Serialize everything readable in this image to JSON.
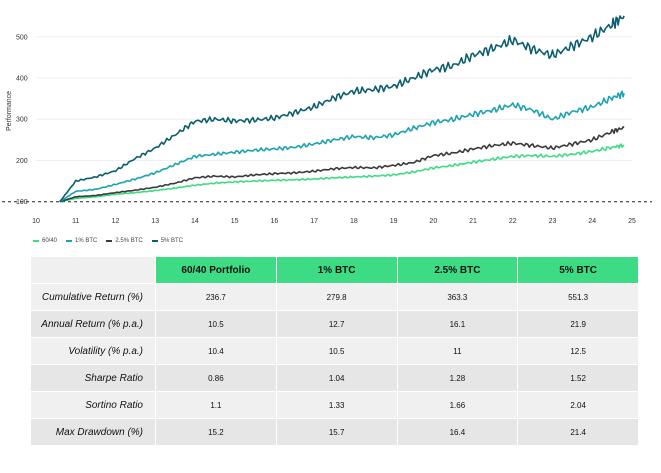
{
  "chart_data": {
    "type": "line",
    "xlabel": "",
    "ylabel": "Performance",
    "x_ticks": [
      "10",
      "11",
      "12",
      "13",
      "14",
      "15",
      "16",
      "17",
      "18",
      "19",
      "20",
      "21",
      "22",
      "23",
      "24",
      "25"
    ],
    "y_ticks": [
      "100",
      "200",
      "300",
      "400",
      "500"
    ],
    "xlim": [
      10,
      25
    ],
    "ylim": [
      75,
      565
    ],
    "baseline": 100,
    "x": [
      10.6,
      11.0,
      11.5,
      12.0,
      12.5,
      13.0,
      13.5,
      14.0,
      14.5,
      15.0,
      15.5,
      16.0,
      16.5,
      17.0,
      17.5,
      18.0,
      18.5,
      19.0,
      19.5,
      20.0,
      20.5,
      21.0,
      21.5,
      22.0,
      22.5,
      23.0,
      23.5,
      24.0,
      24.5,
      24.8
    ],
    "series": [
      {
        "name": "60/40",
        "color": "#3ddc84",
        "values": [
          100,
          108,
          112,
          118,
          122,
          127,
          133,
          140,
          145,
          148,
          150,
          152,
          153,
          155,
          158,
          160,
          162,
          165,
          172,
          182,
          188,
          196,
          203,
          210,
          212,
          210,
          215,
          222,
          232,
          237
        ]
      },
      {
        "name": "1% BTC",
        "color": "#3a3a3a",
        "values": [
          100,
          112,
          115,
          122,
          128,
          135,
          145,
          158,
          162,
          160,
          165,
          168,
          170,
          174,
          180,
          183,
          182,
          188,
          195,
          212,
          218,
          228,
          236,
          242,
          236,
          230,
          240,
          250,
          270,
          280
        ]
      },
      {
        "name": "2.5% BTC",
        "color": "#1aa3b0",
        "values": [
          100,
          125,
          130,
          142,
          155,
          170,
          190,
          210,
          215,
          220,
          225,
          228,
          232,
          240,
          250,
          258,
          255,
          262,
          278,
          292,
          300,
          312,
          322,
          335,
          322,
          300,
          318,
          330,
          352,
          363
        ]
      },
      {
        "name": "5% BTC",
        "color": "#0b5e6e",
        "values": [
          100,
          150,
          160,
          175,
          205,
          230,
          262,
          295,
          300,
          296,
          298,
          303,
          316,
          330,
          352,
          368,
          372,
          380,
          400,
          420,
          430,
          455,
          472,
          492,
          470,
          455,
          478,
          500,
          530,
          551
        ]
      }
    ]
  },
  "table": {
    "headers": [
      "60/40 Portfolio",
      "1% BTC",
      "2.5% BTC",
      "5% BTC"
    ],
    "rows": [
      {
        "label": "Cumulative Return (%)",
        "values": [
          "236.7",
          "279.8",
          "363.3",
          "551.3"
        ]
      },
      {
        "label": "Annual Return (% p.a.)",
        "values": [
          "10.5",
          "12.7",
          "16.1",
          "21.9"
        ]
      },
      {
        "label": "Volatility (% p.a.)",
        "values": [
          "10.4",
          "10.5",
          "11",
          "12.5"
        ]
      },
      {
        "label": "Sharpe Ratio",
        "values": [
          "0.86",
          "1.04",
          "1.28",
          "1.52"
        ]
      },
      {
        "label": "Sortino Ratio",
        "values": [
          "1.1",
          "1.33",
          "1.66",
          "2.04"
        ]
      },
      {
        "label": "Max Drawdown (%)",
        "values": [
          "15.2",
          "15.7",
          "16.4",
          "21.4"
        ]
      }
    ]
  }
}
